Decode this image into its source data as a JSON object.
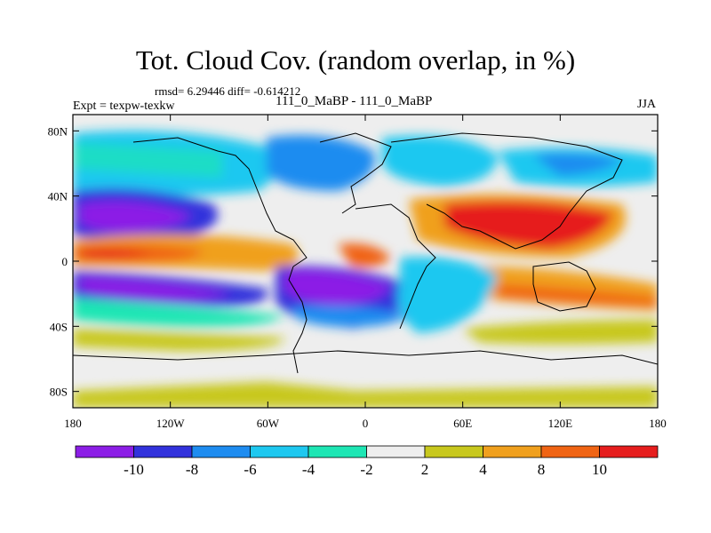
{
  "title": "Tot. Cloud Cov. (random overlap, in %)",
  "stats": "rmsd= 6.29446 diff= -0.614212",
  "experiment": "Expt = texpw-texkw",
  "comparison": "111_0_MaBP - 111_0_MaBP",
  "season": "JJA",
  "map": {
    "lat_ticks": [
      "80N",
      "40N",
      "0",
      "40S",
      "80S"
    ],
    "lat_values": [
      80,
      40,
      0,
      -40,
      -80
    ],
    "lon_ticks": [
      "180",
      "120W",
      "60W",
      "0",
      "60E",
      "120E",
      "180"
    ],
    "lon_values": [
      -180,
      -120,
      -60,
      0,
      60,
      120,
      180
    ],
    "lat_range": [
      -90,
      90
    ],
    "lon_range": [
      -180,
      180
    ]
  },
  "colorbar": {
    "labels": [
      "-10",
      "-8",
      "-6",
      "-4",
      "-2",
      "2",
      "4",
      "8",
      "10"
    ],
    "colors": [
      "#8c1ee6",
      "#3232dc",
      "#1e8cf0",
      "#1ec8f0",
      "#1ee6b4",
      "#eeeeee",
      "#c8c81e",
      "#f0a01e",
      "#f06414",
      "#e61e1e"
    ]
  }
}
